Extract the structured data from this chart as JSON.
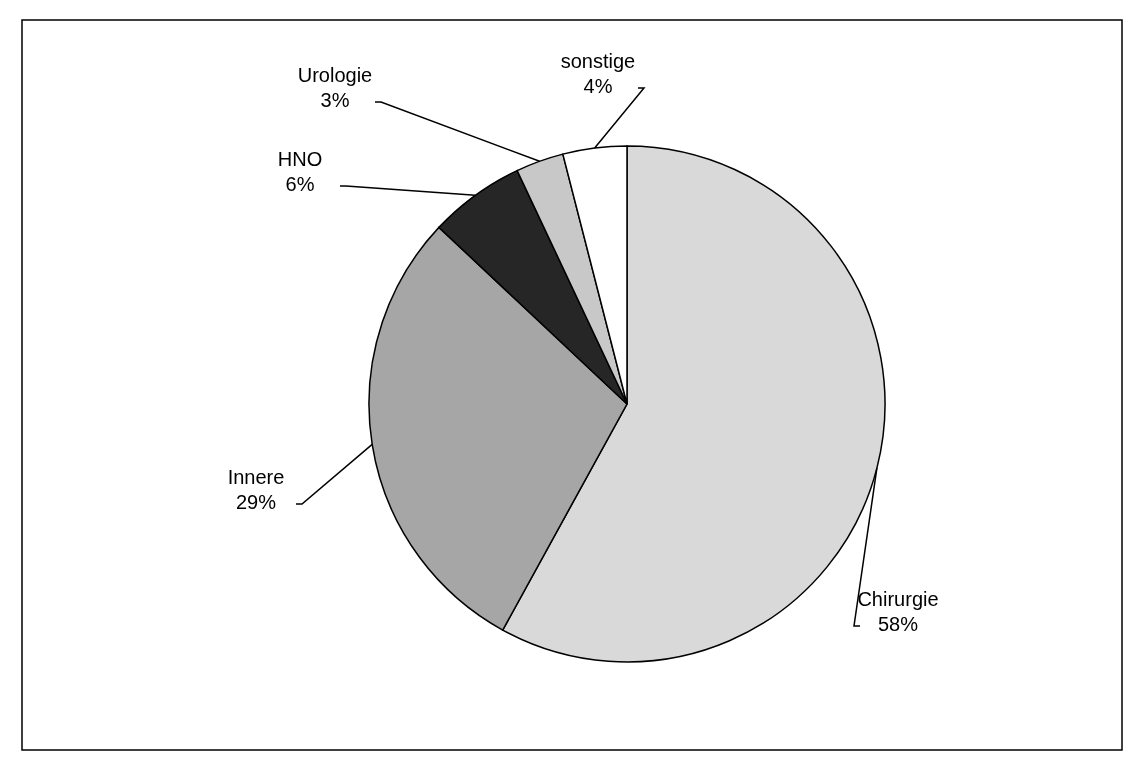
{
  "chart_data": {
    "type": "pie",
    "categories": [
      "Chirurgie",
      "Innere",
      "HNO",
      "Urologie",
      "sonstige"
    ],
    "values": [
      58,
      29,
      6,
      3,
      4
    ],
    "value_labels": [
      "58%",
      "29%",
      "6%",
      "3%",
      "4%"
    ],
    "colors": [
      "#d9d9d9",
      "#a6a6a6",
      "#262626",
      "#c8c8c8",
      "#ffffff"
    ]
  }
}
